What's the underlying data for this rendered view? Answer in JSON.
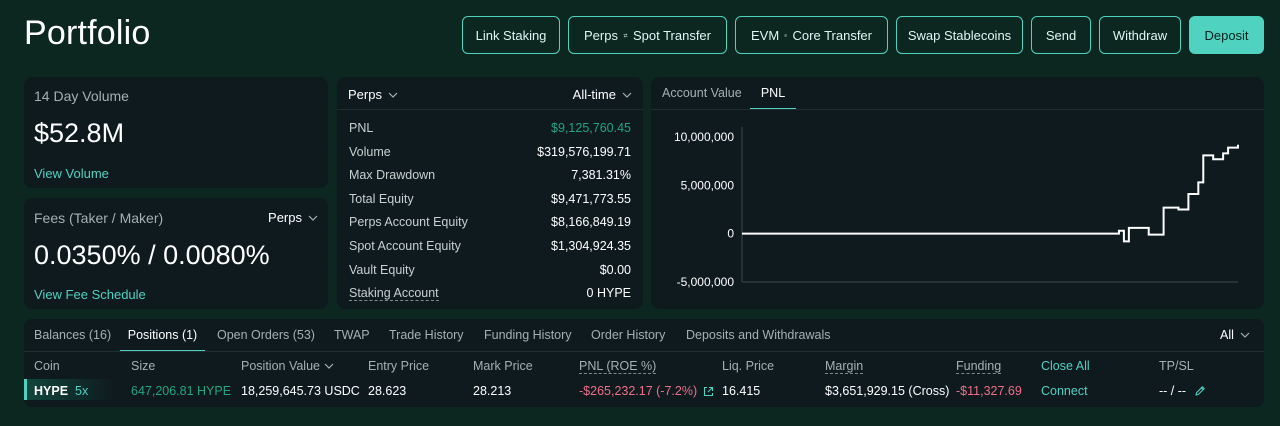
{
  "page": {
    "title": "Portfolio"
  },
  "actions": {
    "link_staking": "Link Staking",
    "perps_spot_left": "Perps",
    "perps_spot_right": "Spot Transfer",
    "evm_core_left": "EVM",
    "evm_core_right": "Core Transfer",
    "swap_stablecoins": "Swap Stablecoins",
    "send": "Send",
    "withdraw": "Withdraw",
    "deposit": "Deposit"
  },
  "volume": {
    "label": "14 Day Volume",
    "value": "$52.8M",
    "link": "View Volume"
  },
  "fees": {
    "label": "Fees (Taker / Maker)",
    "selector": "Perps",
    "value": "0.0350% / 0.0080%",
    "link": "View Fee Schedule"
  },
  "stats": {
    "market_selector": "Perps",
    "range_selector": "All-time",
    "rows": [
      {
        "label": "PNL",
        "value": "$9,125,760.45",
        "tone": "green"
      },
      {
        "label": "Volume",
        "value": "$319,576,199.71",
        "tone": "white"
      },
      {
        "label": "Max Drawdown",
        "value": "7,381.31%",
        "tone": "white"
      },
      {
        "label": "Total Equity",
        "value": "$9,471,773.55",
        "tone": "white"
      },
      {
        "label": "Perps Account Equity",
        "value": "$8,166,849.19",
        "tone": "white"
      },
      {
        "label": "Spot Account Equity",
        "value": "$1,304,924.35",
        "tone": "white"
      },
      {
        "label": "Vault Equity",
        "value": "$0.00",
        "tone": "white"
      },
      {
        "label": "Staking Account",
        "value": "0 HYPE",
        "tone": "white"
      }
    ]
  },
  "chart_tabs": {
    "account_value": "Account Value",
    "pnl": "PNL",
    "active": "pnl"
  },
  "chart_data": {
    "type": "line",
    "title": "",
    "xlabel": "",
    "ylabel": "",
    "ylim": [
      -5000000,
      10000000
    ],
    "y_ticks": [
      "10,000,000",
      "5,000,000",
      "0",
      "-5,000,000"
    ],
    "y_tick_values": [
      10000000,
      5000000,
      0,
      -5000000
    ],
    "x": [
      0,
      75,
      76,
      77,
      78,
      80,
      82,
      85,
      88,
      90,
      92,
      93,
      95,
      97,
      98,
      100
    ],
    "series": [
      {
        "values": [
          0,
          0,
          300000,
          -800000,
          600000,
          600000,
          -100000,
          2700000,
          2500000,
          4100000,
          5300000,
          8100000,
          7700000,
          8300000,
          8900000,
          9200000
        ]
      }
    ],
    "grid": false,
    "legend": "none",
    "line_color": "#ffffff"
  },
  "bottom_tabs": [
    "Balances (16)",
    "Positions (1)",
    "Open Orders (53)",
    "TWAP",
    "Trade History",
    "Funding History",
    "Order History",
    "Deposits and Withdrawals"
  ],
  "bottom_active_tab": "Positions (1)",
  "filter": "All",
  "positions": {
    "headers": {
      "coin": "Coin",
      "size": "Size",
      "position_value": "Position Value",
      "entry_price": "Entry Price",
      "mark_price": "Mark Price",
      "pnl": "PNL (ROE %)",
      "liq_price": "Liq. Price",
      "margin": "Margin",
      "funding": "Funding",
      "close_all": "Close All",
      "tpsl": "TP/SL"
    },
    "rows": [
      {
        "coin": "HYPE",
        "leverage": "5x",
        "size": "647,206.81 HYPE",
        "position_value": "18,259,645.73 USDC",
        "entry_price": "28.623",
        "mark_price": "28.213",
        "pnl": "-$265,232.17 (-7.2%)",
        "liq_price": "16.415",
        "margin": "$3,651,929.15 (Cross)",
        "funding": "-$11,327.69",
        "action": "Connect",
        "tpsl": "-- / --"
      }
    ]
  },
  "colors": {
    "background": "#0c2620",
    "card": "#0f1a1f",
    "accent": "#50d2c1",
    "positive": "#1fa67d",
    "negative": "#ed7088"
  }
}
